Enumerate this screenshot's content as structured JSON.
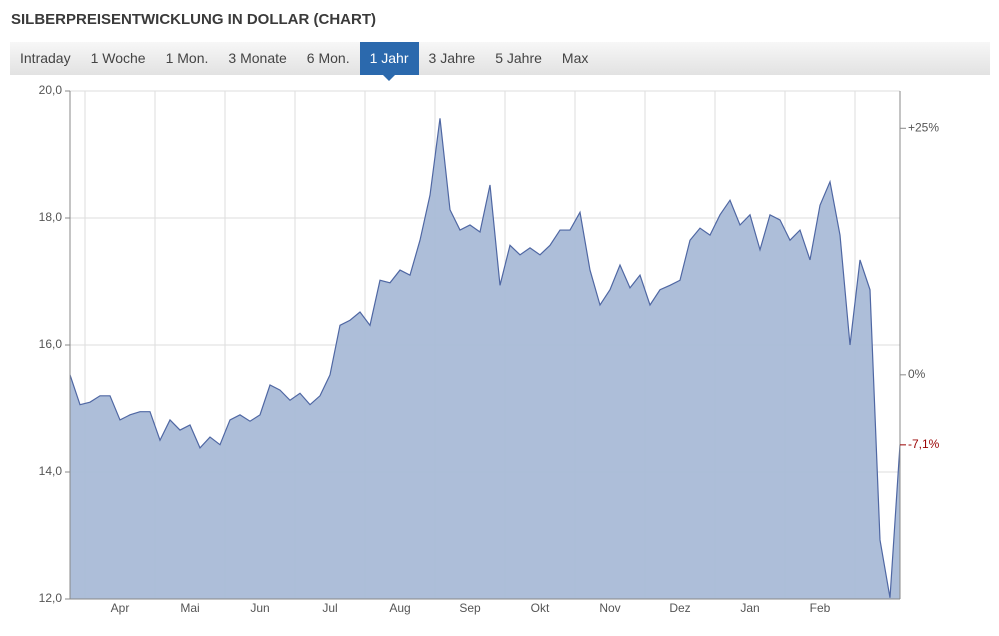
{
  "tabs": [
    "Intraday",
    "1 Woche",
    "1 Mon.",
    "3 Monate",
    "6 Mon.",
    "1 Jahr",
    "3 Jahre",
    "5 Jahre",
    "Max"
  ],
  "active_tab": 5,
  "chart_data": {
    "type": "area",
    "title": "SILBERPREISENTWICKLUNG IN DOLLAR (CHART)",
    "categories": [
      null,
      null,
      null,
      null,
      null,
      "Apr",
      null,
      null,
      null,
      null,
      null,
      null,
      "Mai",
      null,
      null,
      null,
      null,
      null,
      null,
      "Jun",
      null,
      null,
      null,
      null,
      null,
      null,
      "Jul",
      null,
      null,
      null,
      null,
      null,
      null,
      "Aug",
      null,
      null,
      null,
      null,
      null,
      null,
      "Sep",
      null,
      null,
      null,
      null,
      null,
      null,
      "Okt",
      null,
      null,
      null,
      null,
      null,
      null,
      "Nov",
      null,
      null,
      null,
      null,
      null,
      null,
      "Dez",
      null,
      null,
      null,
      null,
      null,
      null,
      "Jan",
      null,
      null,
      null,
      null,
      null,
      null,
      "Feb",
      null,
      null,
      null,
      null,
      null,
      null,
      null,
      null
    ],
    "values": [
      15.53,
      15.06,
      15.1,
      15.2,
      15.2,
      14.82,
      14.9,
      14.95,
      14.95,
      14.5,
      14.82,
      14.66,
      14.74,
      14.38,
      14.55,
      14.43,
      14.82,
      14.9,
      14.8,
      14.9,
      15.37,
      15.29,
      15.13,
      15.24,
      15.06,
      15.2,
      15.53,
      16.31,
      16.39,
      16.52,
      16.31,
      17.02,
      16.98,
      17.18,
      17.1,
      17.65,
      18.36,
      19.57,
      18.13,
      17.81,
      17.89,
      17.78,
      18.52,
      16.94,
      17.57,
      17.42,
      17.53,
      17.42,
      17.57,
      17.81,
      17.81,
      18.09,
      17.18,
      16.63,
      16.87,
      17.26,
      16.9,
      17.1,
      16.63,
      16.87,
      16.94,
      17.02,
      17.65,
      17.84,
      17.73,
      18.05,
      18.28,
      17.89,
      18.05,
      17.5,
      18.05,
      17.97,
      17.65,
      17.81,
      17.34,
      18.2,
      18.57,
      17.73,
      16.0,
      17.34,
      16.87,
      12.93,
      12.02,
      14.43
    ],
    "color": "#4f67a3",
    "fill": "#a9bad7",
    "ylim": [
      12,
      20
    ],
    "yticks": [
      {
        "value": 12,
        "label": "12,0"
      },
      {
        "value": 14,
        "label": "14,0"
      },
      {
        "value": 16,
        "label": "16,0"
      },
      {
        "value": 18,
        "label": "18,0"
      },
      {
        "value": 20,
        "label": "20,0"
      }
    ],
    "y2lim": [
      -22.73,
      28.78
    ],
    "y2ticks": [
      {
        "value": 25,
        "label": "+25%"
      },
      {
        "value": 0,
        "label": "0%"
      }
    ],
    "annotation": {
      "value": -7.1,
      "label": "-7,1%",
      "color": "#990000"
    },
    "grid": true
  }
}
